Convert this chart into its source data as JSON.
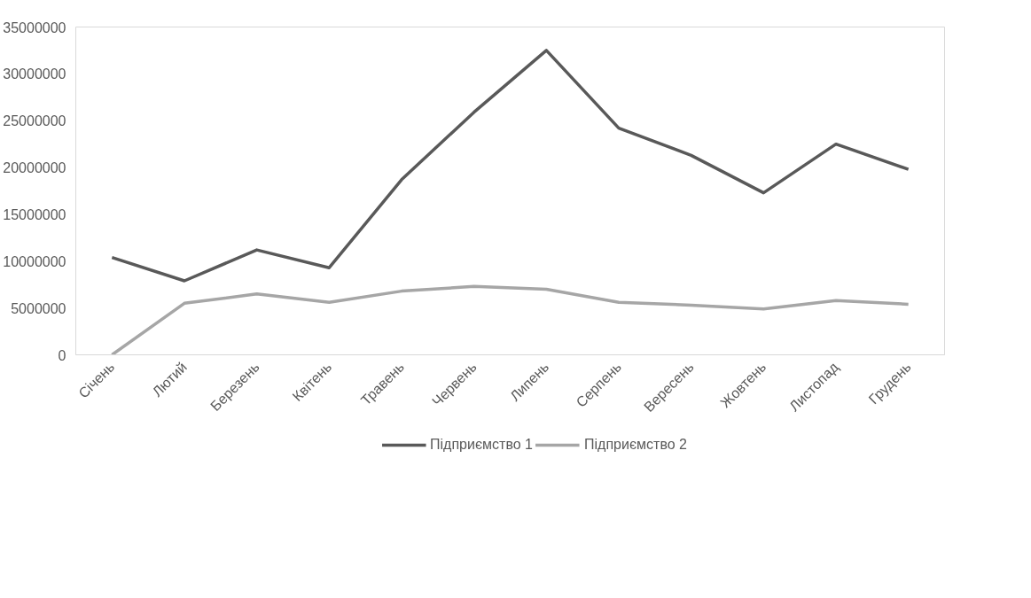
{
  "chart_data": {
    "type": "line",
    "categories": [
      "Січень",
      "Лютий",
      "Березень",
      "Квітень",
      "Травень",
      "Червень",
      "Липень",
      "Серпень",
      "Вересень",
      "Жовтень",
      "Листопад",
      "Грудень"
    ],
    "series": [
      {
        "name": "Підприємство 1",
        "color": "#595959",
        "values": [
          10400000,
          7900000,
          11200000,
          9300000,
          18700000,
          25900000,
          32500000,
          24200000,
          21300000,
          17300000,
          22500000,
          19800000
        ]
      },
      {
        "name": "Підприємство 2",
        "color": "#a6a6a6",
        "values": [
          0,
          5500000,
          6500000,
          5600000,
          6800000,
          7300000,
          7000000,
          5600000,
          5300000,
          4900000,
          5800000,
          5400000
        ]
      }
    ],
    "ylim": [
      0,
      35000000
    ],
    "yticks": [
      0,
      5000000,
      10000000,
      15000000,
      20000000,
      25000000,
      30000000,
      35000000
    ],
    "grid": false,
    "legend": "bottom",
    "marker": "none",
    "line_style": "solid"
  }
}
